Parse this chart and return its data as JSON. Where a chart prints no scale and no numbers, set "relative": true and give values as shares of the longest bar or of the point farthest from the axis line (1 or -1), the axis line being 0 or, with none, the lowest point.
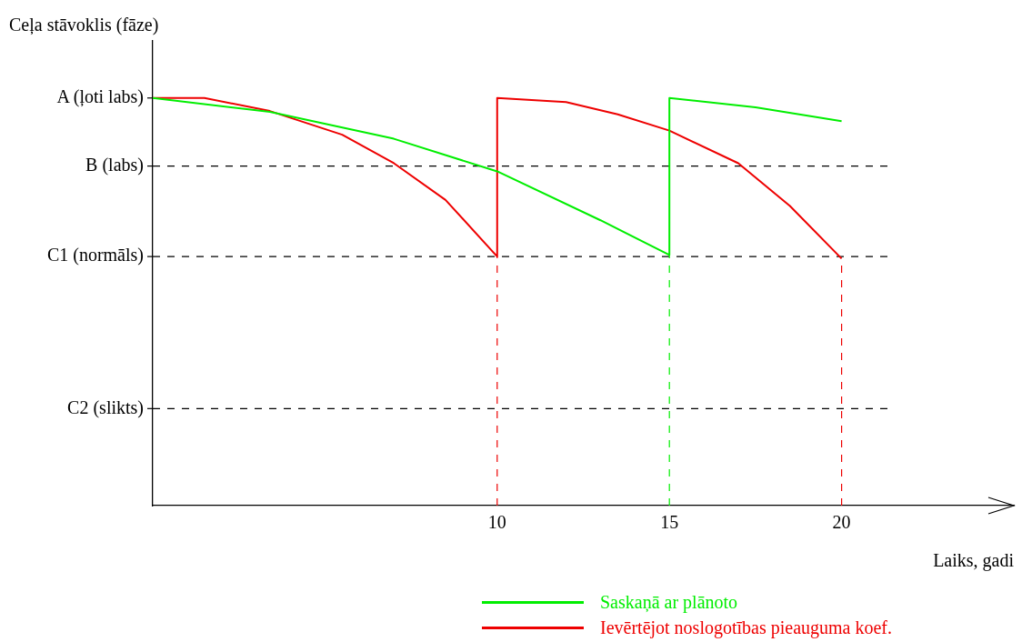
{
  "chart_data": {
    "type": "line",
    "xlabel": "Laiks, gadi",
    "ylabel": "Ceļa stāvoklis (fāze)",
    "xlim": [
      0,
      25
    ],
    "xticks": [
      10,
      15,
      20
    ],
    "relative": true,
    "annotations": [
      {
        "text": "A (ļoti labs)",
        "x": 0,
        "y": 1.0
      }
    ],
    "grid": false,
    "legend": "bottom",
    "marker": "none",
    "series": [
      {
        "name": "Saskaņā ar plānoto",
        "color": "#00ee00",
        "x": [
          0,
          3.4,
          7,
          10,
          13,
          15,
          15,
          17.5,
          20
        ],
        "values": [
          1.0,
          0.966,
          0.9,
          0.82,
          0.7,
          0.615,
          1.0,
          0.977,
          0.943
        ]
      },
      {
        "name": "Ievērtējot noslogotības pieauguma koef.",
        "color": "#ee0000",
        "x": [
          0,
          1.5,
          3.4,
          5.5,
          7,
          8.5,
          10,
          10,
          12,
          13.5,
          15,
          17,
          18.5,
          20
        ],
        "values": [
          1.0,
          1.0,
          0.968,
          0.91,
          0.84,
          0.75,
          0.611,
          1.0,
          0.99,
          0.96,
          0.92,
          0.84,
          0.735,
          0.606
        ]
      }
    ],
    "ref_lines": [
      {
        "axis": "y",
        "value": 0.833,
        "label": "B (labs)",
        "color": "#000000",
        "line_style": "dashed"
      },
      {
        "axis": "y",
        "value": 0.611,
        "label": "C1 (normāls)",
        "color": "#000000",
        "line_style": "dashed"
      },
      {
        "axis": "y",
        "value": 0.238,
        "label": "C2 (slikts)",
        "color": "#000000",
        "line_style": "dashed"
      },
      {
        "axis": "x",
        "value": 10,
        "color": "#ee0000",
        "line_style": "dashed"
      },
      {
        "axis": "x",
        "value": 15,
        "color": "#00ee00",
        "line_style": "dashed"
      },
      {
        "axis": "x",
        "value": 20,
        "color": "#ee0000",
        "line_style": "dashed"
      }
    ]
  }
}
